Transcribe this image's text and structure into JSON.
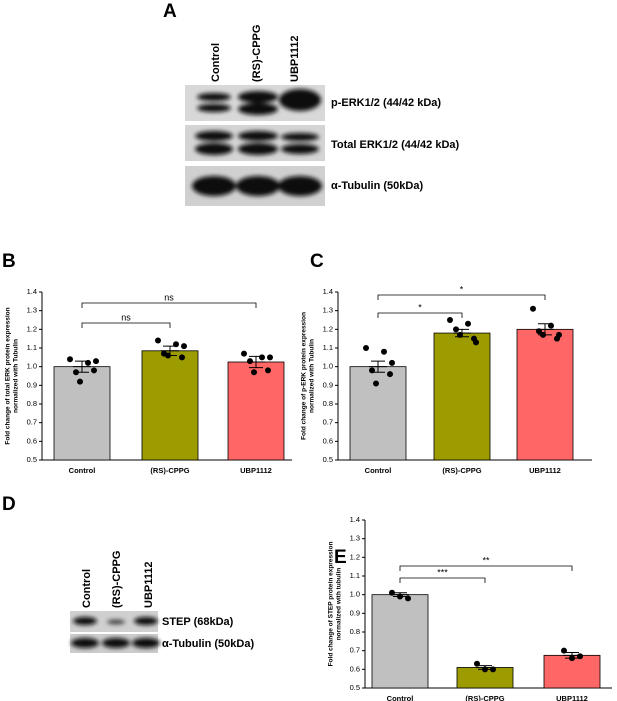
{
  "panels": [
    "A",
    "B",
    "C",
    "D",
    "E"
  ],
  "blot_a": {
    "lanes": [
      "Control",
      "(RS)-CPPG",
      "UBP1112"
    ],
    "bands": [
      "p-ERK1/2 (44/42 kDa)",
      "Total ERK1/2 (44/42 kDa)",
      "α-Tubulin (50kDa)"
    ]
  },
  "blot_d": {
    "lanes": [
      "Control",
      "(RS)-CPPG",
      "UBP1112"
    ],
    "bands": [
      "STEP (68kDa)",
      "α-Tubulin (50kDa)"
    ]
  },
  "chart_data": [
    {
      "type": "bar",
      "ylabel": [
        "Fold change of total ERK protein expression",
        "normalized with Tubulin"
      ],
      "categories": [
        "Control",
        "(RS)-CPPG",
        "UBP1112"
      ],
      "values": [
        1.0,
        1.085,
        1.025
      ],
      "errors": [
        0.03,
        0.025,
        0.03
      ],
      "points": [
        [
          1.04,
          1.02,
          0.97,
          0.98,
          0.92,
          1.03
        ],
        [
          1.14,
          1.12,
          1.07,
          1.05,
          1.06,
          1.11
        ],
        [
          1.07,
          1.05,
          1.03,
          0.98,
          0.97,
          1.05
        ]
      ],
      "colors": [
        "#c0c0c0",
        "#9c9c00",
        "#ff6666"
      ],
      "annotations": [
        "ns",
        "ns"
      ],
      "ylim": [
        0.5,
        1.4
      ],
      "yticks": [
        0.5,
        0.6,
        0.7,
        0.8,
        0.9,
        {
          "value": 1,
          "label": "1.0"
        },
        1.1,
        1.2,
        1.3,
        1.4
      ]
    },
    {
      "type": "bar",
      "ylabel": [
        "Fold change of p-ERK protein expression",
        "normalized with Tubulin"
      ],
      "categories": [
        "Control",
        "(RS)-CPPG",
        "UBP1112"
      ],
      "values": [
        1.0,
        1.18,
        1.2
      ],
      "errors": [
        0.03,
        0.02,
        0.03
      ],
      "points": [
        [
          1.1,
          1.08,
          0.98,
          0.96,
          0.91,
          1.02
        ],
        [
          1.25,
          1.23,
          1.2,
          1.15,
          1.17,
          1.13
        ],
        [
          1.31,
          1.22,
          1.19,
          1.15,
          1.17,
          1.17
        ]
      ],
      "colors": [
        "#c0c0c0",
        "#9c9c00",
        "#ff6666"
      ],
      "annotations": [
        "*",
        "*"
      ],
      "ylim": [
        0.5,
        1.4
      ],
      "yticks": [
        0.5,
        0.6,
        0.7,
        0.8,
        0.9,
        {
          "value": 1,
          "label": "1.0"
        },
        1.1,
        1.2,
        1.3,
        1.4
      ]
    },
    {
      "type": "bar",
      "ylabel": [
        "Fold change of STEP protein expression",
        "normalized with tubulin"
      ],
      "categories": [
        "Control",
        "(RS)-CPPG",
        "UBP1112"
      ],
      "values": [
        1.0,
        0.61,
        0.675
      ],
      "errors": [
        0.01,
        0.01,
        0.015
      ],
      "points": [
        [
          1.01,
          0.99,
          0.98
        ],
        [
          0.63,
          0.6,
          0.6
        ],
        [
          0.7,
          0.66,
          0.67
        ]
      ],
      "colors": [
        "#c0c0c0",
        "#9c9c00",
        "#ff6666"
      ],
      "annotations": [
        "**",
        "***"
      ],
      "ylim": [
        0.5,
        1.4
      ],
      "yticks": [
        0.5,
        0.6,
        0.7,
        0.8,
        0.9,
        {
          "value": 1,
          "label": "1.0"
        },
        1.1,
        1.2,
        1.3,
        1.4
      ]
    }
  ]
}
